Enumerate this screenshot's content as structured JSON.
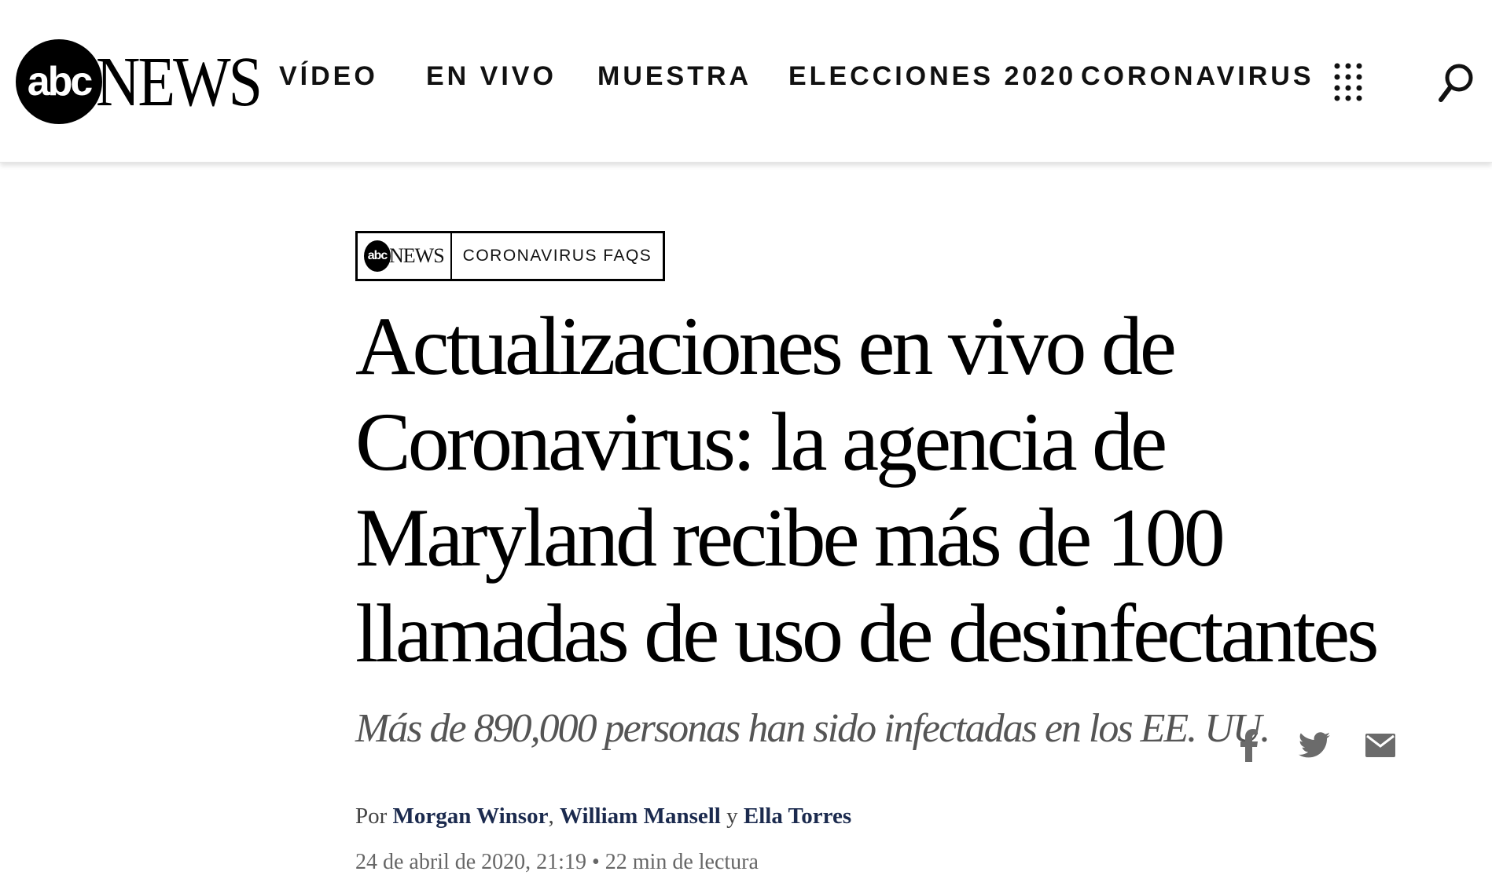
{
  "header": {
    "logo_mark": "abc",
    "logo_text": "NEWS",
    "nav": [
      {
        "label": "VÍDEO"
      },
      {
        "label": "EN VIVO"
      },
      {
        "label": "MUESTRA"
      },
      {
        "label": "ELECCIONES 2020"
      },
      {
        "label": "CORONAVIRUS"
      }
    ],
    "menu_icon": "grid-dots-icon",
    "search_icon": "search-icon"
  },
  "article": {
    "badge": {
      "logo_mark": "abc",
      "logo_text": "NEWS",
      "label": "CORONAVIRUS FAQS"
    },
    "headline": "Actualizaciones en vivo de Coronavirus: la agencia de Maryland recibe más de 100 llamadas de uso de desinfectantes",
    "subhead": "Más de 890,000 personas han sido infectadas en los EE. UU.",
    "byline": {
      "prefix": "Por",
      "authors": [
        "Morgan Winsor",
        "William Mansell",
        "Ella Torres"
      ],
      "separator": ",",
      "conjunction": "y"
    },
    "date": "24 de abril de 2020, 21:19",
    "read_time": "• 22 min de lectura",
    "share": [
      {
        "icon": "facebook-icon"
      },
      {
        "icon": "twitter-icon"
      },
      {
        "icon": "email-icon"
      }
    ]
  }
}
